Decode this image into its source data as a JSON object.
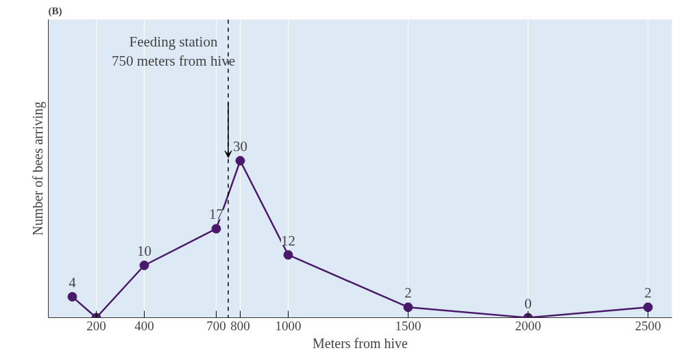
{
  "chart_data": {
    "type": "line",
    "title": "(B)",
    "xlabel": "Meters from hive",
    "ylabel": "Number of bees arriving",
    "x": [
      100,
      200,
      400,
      700,
      800,
      1000,
      1500,
      2000,
      2500
    ],
    "series": [
      {
        "color": "#4a1a6a",
        "values": [
          4,
          0,
          10,
          17,
          30,
          12,
          2,
          0,
          2
        ],
        "value_labels": [
          "4",
          null,
          "10",
          "17",
          "30",
          "12",
          "2",
          "0",
          "2"
        ]
      }
    ],
    "xlim": [
      0,
      2600
    ],
    "xticks": [
      200,
      400,
      700,
      800,
      1000,
      1500,
      2000,
      2500
    ],
    "tick_labels": "x",
    "grid": "x",
    "marker": "circle",
    "line_style": "solid",
    "ref_lines": [
      {
        "axis": "x",
        "value": 750,
        "label": "Feeding station\n750 meters from hive",
        "line_style": "dashed",
        "color": "#000000"
      }
    ]
  }
}
